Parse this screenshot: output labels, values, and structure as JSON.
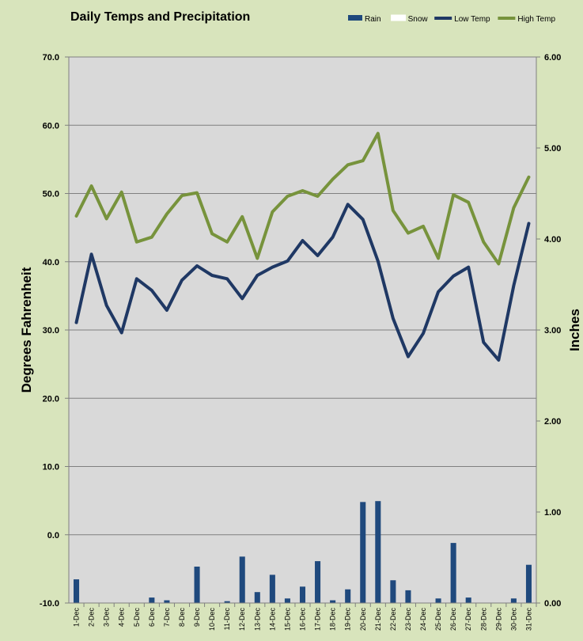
{
  "chart_data": {
    "type": "bar+line",
    "title": "Daily Temps and Precipitation",
    "ylabel": "Degrees Fahrenheit",
    "y2label": "Inches",
    "ylim": [
      -10,
      70
    ],
    "y2lim": [
      0,
      6
    ],
    "y_ticks": [
      "70.0",
      "60.0",
      "50.0",
      "40.0",
      "30.0",
      "20.0",
      "10.0",
      "0.0",
      "-10.0"
    ],
    "y2_ticks": [
      "6.00",
      "5.00",
      "4.00",
      "3.00",
      "2.00",
      "1.00",
      "0.00"
    ],
    "grid": true,
    "legend_position": "top-right",
    "categories": [
      "1-Dec",
      "2-Dec",
      "3-Dec",
      "4-Dec",
      "5-Dec",
      "6-Dec",
      "7-Dec",
      "8-Dec",
      "9-Dec",
      "10-Dec",
      "11-Dec",
      "12-Dec",
      "13-Dec",
      "14-Dec",
      "15-Dec",
      "16-Dec",
      "17-Dec",
      "18-Dec",
      "19-Dec",
      "20-Dec",
      "21-Dec",
      "22-Dec",
      "23-Dec",
      "24-Dec",
      "25-Dec",
      "26-Dec",
      "27-Dec",
      "28-Dec",
      "29-Dec",
      "30-Dec",
      "31-Dec"
    ],
    "series": [
      {
        "name": "Rain",
        "axis": "secondary",
        "kind": "bar",
        "color": "#1f497d",
        "values": [
          0.26,
          0,
          0,
          0,
          0,
          0.06,
          0.03,
          0,
          0.4,
          0,
          0.02,
          0.51,
          0.12,
          0.31,
          0.05,
          0.18,
          0.46,
          0.03,
          0.15,
          1.11,
          1.12,
          0.25,
          0.14,
          0,
          0.05,
          0.66,
          0.06,
          0,
          0,
          0.05,
          0.42
        ]
      },
      {
        "name": "Snow",
        "axis": "secondary",
        "kind": "bar",
        "color": "#ffffff",
        "values": [
          0,
          0,
          0,
          0,
          0,
          0,
          0,
          0,
          0,
          0,
          0,
          0,
          0,
          0,
          0,
          0,
          0,
          0,
          0,
          0,
          0,
          0,
          0,
          0,
          0,
          0,
          0,
          0,
          0,
          0,
          0
        ]
      },
      {
        "name": "Low Temp",
        "axis": "primary",
        "kind": "line",
        "color": "#1f3864",
        "values": [
          31.1,
          41.1,
          33.6,
          29.6,
          37.5,
          35.8,
          32.9,
          37.3,
          39.4,
          38.0,
          37.5,
          34.6,
          38.0,
          39.2,
          40.1,
          43.1,
          40.9,
          43.6,
          48.4,
          46.2,
          40.1,
          31.7,
          26.1,
          29.5,
          35.6,
          37.9,
          39.2,
          28.2,
          25.6,
          36.5,
          45.6
        ]
      },
      {
        "name": "High Temp",
        "axis": "primary",
        "kind": "line",
        "color": "#77933c",
        "values": [
          46.7,
          51.1,
          46.3,
          50.2,
          42.9,
          43.6,
          47.0,
          49.7,
          50.1,
          44.1,
          42.9,
          46.6,
          40.5,
          47.3,
          49.6,
          50.4,
          49.6,
          52.1,
          54.2,
          54.8,
          58.8,
          47.5,
          44.2,
          45.2,
          40.5,
          49.8,
          48.7,
          42.9,
          39.7,
          47.9,
          52.4
        ]
      }
    ]
  }
}
